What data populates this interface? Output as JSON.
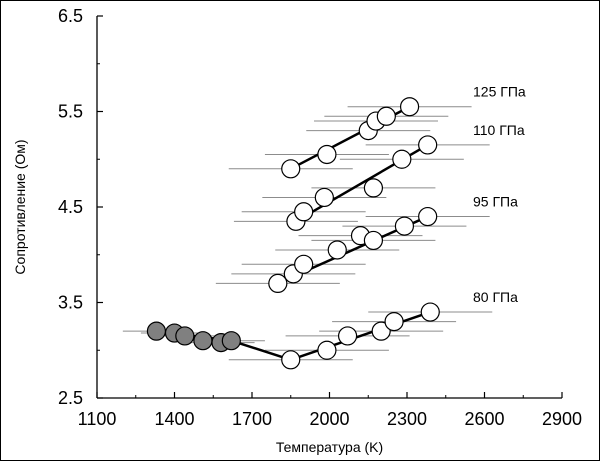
{
  "chart_data": {
    "type": "scatter",
    "xlabel": "Температура (K)",
    "ylabel": "Сопротивление (Ом)",
    "xlim": [
      1100,
      2900
    ],
    "ylim": [
      2.5,
      6.5
    ],
    "xticks": [
      "1100",
      "1400",
      "1700",
      "2000",
      "2300",
      "2600",
      "2900"
    ],
    "yticks": [
      "2.5",
      "3.5",
      "4.5",
      "5.5",
      "6.5"
    ],
    "grid": false,
    "legend": "none",
    "error_bar": "horizontal",
    "colors": {
      "open_marker": "#ffffff",
      "filled_marker": "#808080",
      "edge": "#000000",
      "error_bar": "#8c8c8c"
    },
    "series": [
      {
        "label": "125 ГПа",
        "points": [
          {
            "x": 1850,
            "y": 4.9,
            "xerr": 240
          },
          {
            "x": 1990,
            "y": 5.05,
            "xerr": 240
          },
          {
            "x": 2150,
            "y": 5.3,
            "xerr": 240
          },
          {
            "x": 2180,
            "y": 5.4,
            "xerr": 240
          },
          {
            "x": 2220,
            "y": 5.45,
            "xerr": 240
          },
          {
            "x": 2310,
            "y": 5.55,
            "xerr": 240
          }
        ],
        "fit": [
          [
            1850,
            4.9
          ],
          [
            2310,
            5.55
          ]
        ]
      },
      {
        "label": "110 ГПа",
        "points": [
          {
            "x": 1870,
            "y": 4.35,
            "xerr": 240
          },
          {
            "x": 1900,
            "y": 4.45,
            "xerr": 240
          },
          {
            "x": 1980,
            "y": 4.6,
            "xerr": 240
          },
          {
            "x": 2170,
            "y": 4.7,
            "xerr": 240
          },
          {
            "x": 2280,
            "y": 5.0,
            "xerr": 240
          },
          {
            "x": 2380,
            "y": 5.15,
            "xerr": 240
          }
        ],
        "fit": [
          [
            1870,
            4.35
          ],
          [
            2380,
            5.15
          ]
        ]
      },
      {
        "label": "95 ГПа",
        "points": [
          {
            "x": 1800,
            "y": 3.7,
            "xerr": 240
          },
          {
            "x": 1860,
            "y": 3.8,
            "xerr": 240
          },
          {
            "x": 1900,
            "y": 3.9,
            "xerr": 240
          },
          {
            "x": 2030,
            "y": 4.05,
            "xerr": 240
          },
          {
            "x": 2120,
            "y": 4.2,
            "xerr": 240
          },
          {
            "x": 2170,
            "y": 4.15,
            "xerr": 240
          },
          {
            "x": 2290,
            "y": 4.3,
            "xerr": 240
          },
          {
            "x": 2380,
            "y": 4.4,
            "xerr": 240
          }
        ],
        "fit": [
          [
            1800,
            3.7
          ],
          [
            2380,
            4.4
          ]
        ]
      },
      {
        "label": "80 ГПа",
        "points": [
          {
            "x": 1330,
            "y": 3.2,
            "xerr": 130,
            "filled": true
          },
          {
            "x": 1400,
            "y": 3.18,
            "xerr": 130,
            "filled": true
          },
          {
            "x": 1440,
            "y": 3.15,
            "xerr": 130,
            "filled": true
          },
          {
            "x": 1510,
            "y": 3.1,
            "xerr": 130,
            "filled": true
          },
          {
            "x": 1580,
            "y": 3.08,
            "xerr": 130,
            "filled": true
          },
          {
            "x": 1620,
            "y": 3.1,
            "xerr": 130,
            "filled": true
          },
          {
            "x": 1850,
            "y": 2.9,
            "xerr": 240
          },
          {
            "x": 1990,
            "y": 3.0,
            "xerr": 240
          },
          {
            "x": 2070,
            "y": 3.15,
            "xerr": 240
          },
          {
            "x": 2200,
            "y": 3.2,
            "xerr": 240
          },
          {
            "x": 2250,
            "y": 3.3,
            "xerr": 240
          },
          {
            "x": 2390,
            "y": 3.4,
            "xerr": 240
          }
        ],
        "fit": [
          [
            1330,
            3.2
          ],
          [
            1620,
            3.1
          ],
          [
            1850,
            2.9
          ],
          [
            2390,
            3.4
          ]
        ]
      }
    ]
  }
}
